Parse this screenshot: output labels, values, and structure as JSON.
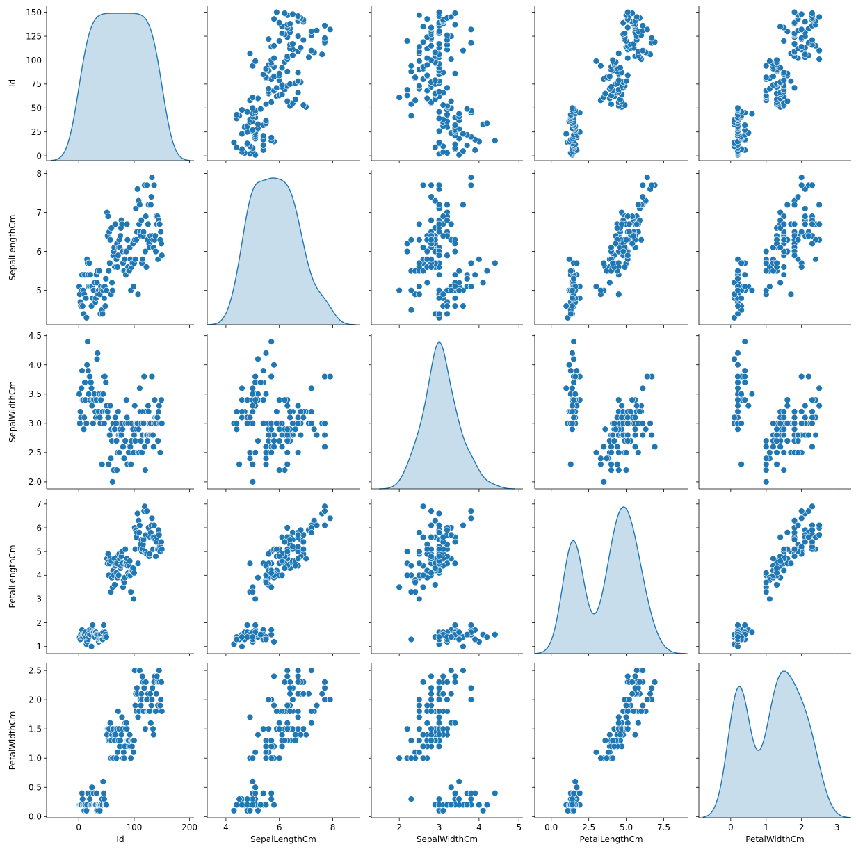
{
  "chart_data": {
    "type": "scatter",
    "kind": "pairplot",
    "diagonal": "kde",
    "point_color": "#1f77b4",
    "variables": [
      "Id",
      "SepalLengthCm",
      "SepalWidthCm",
      "PetalLengthCm",
      "PetalWidthCm"
    ],
    "axis_ranges": {
      "Id": [
        -58,
        208
      ],
      "SepalLengthCm": [
        3.3,
        9.0
      ],
      "SepalWidthCm": [
        1.3,
        5.1
      ],
      "PetalLengthCm": [
        -1.1,
        9.1
      ],
      "PetalWidthCm": [
        -0.9,
        3.4
      ]
    },
    "scatter_ranges": {
      "Id": [
        -5,
        157
      ],
      "SepalLengthCm": [
        4.12,
        8.08
      ],
      "SepalWidthCm": [
        1.88,
        4.52
      ],
      "PetalLengthCm": [
        0.7,
        7.2
      ],
      "PetalWidthCm": [
        -0.02,
        2.62
      ]
    },
    "ticks": {
      "Id": {
        "values": [
          0,
          100,
          200
        ],
        "labels": [
          "0",
          "100",
          "200"
        ]
      },
      "SepalLengthCm": {
        "values": [
          4,
          6,
          8
        ],
        "labels": [
          "4",
          "6",
          "8"
        ]
      },
      "SepalWidthCm": {
        "values": [
          2,
          3,
          4,
          5
        ],
        "labels": [
          "2",
          "3",
          "4",
          "5"
        ]
      },
      "PetalLengthCm": {
        "values": [
          0,
          2.5,
          5,
          7.5
        ],
        "labels": [
          "0.0",
          "2.5",
          "5.0",
          "7.5"
        ]
      },
      "PetalWidthCm": {
        "values": [
          0,
          1,
          2,
          3
        ],
        "labels": [
          "0",
          "1",
          "2",
          "3"
        ]
      }
    },
    "y_ticks": {
      "Id": {
        "values": [
          0,
          25,
          50,
          75,
          100,
          125,
          150
        ],
        "labels": [
          "0",
          "25",
          "50",
          "75",
          "100",
          "125",
          "150"
        ]
      },
      "SepalLengthCm": {
        "values": [
          5,
          6,
          7,
          8
        ],
        "labels": [
          "5",
          "6",
          "7",
          "8"
        ]
      },
      "SepalWidthCm": {
        "values": [
          2,
          2.5,
          3,
          3.5,
          4,
          4.5
        ],
        "labels": [
          "2.0",
          "2.5",
          "3.0",
          "3.5",
          "4.0",
          "4.5"
        ]
      },
      "PetalLengthCm": {
        "values": [
          1,
          2,
          3,
          4,
          5,
          6,
          7
        ],
        "labels": [
          "1",
          "2",
          "3",
          "4",
          "5",
          "6",
          "7"
        ]
      },
      "PetalWidthCm": {
        "values": [
          0,
          0.5,
          1,
          1.5,
          2,
          2.5
        ],
        "labels": [
          "0.0",
          "0.5",
          "1.0",
          "1.5",
          "2.0",
          "2.5"
        ]
      }
    },
    "points": [
      [
        1,
        5.1,
        3.5,
        1.4,
        0.2
      ],
      [
        2,
        4.9,
        3.0,
        1.4,
        0.2
      ],
      [
        3,
        4.7,
        3.2,
        1.3,
        0.2
      ],
      [
        4,
        4.6,
        3.1,
        1.5,
        0.2
      ],
      [
        5,
        5.0,
        3.6,
        1.4,
        0.2
      ],
      [
        6,
        5.4,
        3.9,
        1.7,
        0.4
      ],
      [
        7,
        4.6,
        3.4,
        1.4,
        0.3
      ],
      [
        8,
        5.0,
        3.4,
        1.5,
        0.2
      ],
      [
        9,
        4.4,
        2.9,
        1.4,
        0.2
      ],
      [
        10,
        4.9,
        3.1,
        1.5,
        0.1
      ],
      [
        11,
        5.4,
        3.7,
        1.5,
        0.2
      ],
      [
        12,
        4.8,
        3.4,
        1.6,
        0.2
      ],
      [
        13,
        4.8,
        3.0,
        1.4,
        0.1
      ],
      [
        14,
        4.3,
        3.0,
        1.1,
        0.1
      ],
      [
        15,
        5.8,
        4.0,
        1.2,
        0.2
      ],
      [
        16,
        5.7,
        4.4,
        1.5,
        0.4
      ],
      [
        17,
        5.4,
        3.9,
        1.3,
        0.4
      ],
      [
        18,
        5.1,
        3.5,
        1.4,
        0.3
      ],
      [
        19,
        5.7,
        3.8,
        1.7,
        0.3
      ],
      [
        20,
        5.1,
        3.8,
        1.5,
        0.3
      ],
      [
        21,
        5.4,
        3.4,
        1.7,
        0.2
      ],
      [
        22,
        5.1,
        3.7,
        1.5,
        0.4
      ],
      [
        23,
        4.6,
        3.6,
        1.0,
        0.2
      ],
      [
        24,
        5.1,
        3.3,
        1.7,
        0.5
      ],
      [
        25,
        4.8,
        3.4,
        1.9,
        0.2
      ],
      [
        26,
        5.0,
        3.0,
        1.6,
        0.2
      ],
      [
        27,
        5.0,
        3.4,
        1.6,
        0.4
      ],
      [
        28,
        5.2,
        3.5,
        1.5,
        0.2
      ],
      [
        29,
        5.2,
        3.4,
        1.4,
        0.2
      ],
      [
        30,
        4.7,
        3.2,
        1.6,
        0.2
      ],
      [
        31,
        4.8,
        3.1,
        1.6,
        0.2
      ],
      [
        32,
        5.4,
        3.4,
        1.5,
        0.4
      ],
      [
        33,
        5.2,
        4.1,
        1.5,
        0.1
      ],
      [
        34,
        5.5,
        4.2,
        1.4,
        0.2
      ],
      [
        35,
        4.9,
        3.1,
        1.5,
        0.1
      ],
      [
        36,
        5.0,
        3.2,
        1.2,
        0.2
      ],
      [
        37,
        5.5,
        3.5,
        1.3,
        0.2
      ],
      [
        38,
        4.9,
        3.1,
        1.5,
        0.1
      ],
      [
        39,
        4.4,
        3.0,
        1.3,
        0.2
      ],
      [
        40,
        5.1,
        3.4,
        1.5,
        0.2
      ],
      [
        41,
        5.0,
        3.5,
        1.3,
        0.3
      ],
      [
        42,
        4.5,
        2.3,
        1.3,
        0.3
      ],
      [
        43,
        4.4,
        3.2,
        1.3,
        0.2
      ],
      [
        44,
        5.0,
        3.5,
        1.6,
        0.6
      ],
      [
        45,
        5.1,
        3.8,
        1.9,
        0.4
      ],
      [
        46,
        4.8,
        3.0,
        1.4,
        0.3
      ],
      [
        47,
        5.1,
        3.8,
        1.6,
        0.2
      ],
      [
        48,
        4.6,
        3.2,
        1.4,
        0.2
      ],
      [
        49,
        5.3,
        3.7,
        1.5,
        0.2
      ],
      [
        50,
        5.0,
        3.3,
        1.4,
        0.2
      ],
      [
        51,
        7.0,
        3.2,
        4.7,
        1.4
      ],
      [
        52,
        6.4,
        3.2,
        4.5,
        1.5
      ],
      [
        53,
        6.9,
        3.1,
        4.9,
        1.5
      ],
      [
        54,
        5.5,
        2.3,
        4.0,
        1.3
      ],
      [
        55,
        6.5,
        2.8,
        4.6,
        1.5
      ],
      [
        56,
        5.7,
        2.8,
        4.5,
        1.3
      ],
      [
        57,
        6.3,
        3.3,
        4.7,
        1.6
      ],
      [
        58,
        4.9,
        2.4,
        3.3,
        1.0
      ],
      [
        59,
        6.6,
        2.9,
        4.6,
        1.3
      ],
      [
        60,
        5.2,
        2.7,
        3.9,
        1.4
      ],
      [
        61,
        5.0,
        2.0,
        3.5,
        1.0
      ],
      [
        62,
        5.9,
        3.0,
        4.2,
        1.5
      ],
      [
        63,
        6.0,
        2.2,
        4.0,
        1.0
      ],
      [
        64,
        6.1,
        2.9,
        4.7,
        1.4
      ],
      [
        65,
        5.6,
        2.9,
        3.6,
        1.3
      ],
      [
        66,
        6.7,
        3.1,
        4.4,
        1.4
      ],
      [
        67,
        5.6,
        3.0,
        4.5,
        1.5
      ],
      [
        68,
        5.8,
        2.7,
        4.1,
        1.0
      ],
      [
        69,
        6.2,
        2.2,
        4.5,
        1.5
      ],
      [
        70,
        5.6,
        2.5,
        3.9,
        1.1
      ],
      [
        71,
        5.9,
        3.2,
        4.8,
        1.8
      ],
      [
        72,
        6.1,
        2.8,
        4.0,
        1.3
      ],
      [
        73,
        6.3,
        2.5,
        4.9,
        1.5
      ],
      [
        74,
        6.1,
        2.8,
        4.7,
        1.2
      ],
      [
        75,
        6.4,
        2.9,
        4.3,
        1.3
      ],
      [
        76,
        6.6,
        3.0,
        4.4,
        1.4
      ],
      [
        77,
        6.8,
        2.8,
        4.8,
        1.4
      ],
      [
        78,
        6.7,
        3.0,
        5.0,
        1.7
      ],
      [
        79,
        6.0,
        2.9,
        4.5,
        1.5
      ],
      [
        80,
        5.7,
        2.6,
        3.5,
        1.0
      ],
      [
        81,
        5.5,
        2.4,
        3.8,
        1.1
      ],
      [
        82,
        5.5,
        2.4,
        3.7,
        1.0
      ],
      [
        83,
        5.8,
        2.7,
        3.9,
        1.2
      ],
      [
        84,
        6.0,
        2.7,
        5.1,
        1.6
      ],
      [
        85,
        5.4,
        3.0,
        4.5,
        1.5
      ],
      [
        86,
        6.0,
        3.4,
        4.5,
        1.6
      ],
      [
        87,
        6.7,
        3.1,
        4.7,
        1.5
      ],
      [
        88,
        6.3,
        2.3,
        4.4,
        1.3
      ],
      [
        89,
        5.6,
        3.0,
        4.1,
        1.3
      ],
      [
        90,
        5.5,
        2.5,
        4.0,
        1.3
      ],
      [
        91,
        5.5,
        2.6,
        4.4,
        1.2
      ],
      [
        92,
        6.1,
        3.0,
        4.6,
        1.4
      ],
      [
        93,
        5.8,
        2.6,
        4.0,
        1.2
      ],
      [
        94,
        5.0,
        2.3,
        3.3,
        1.0
      ],
      [
        95,
        5.6,
        2.7,
        4.2,
        1.3
      ],
      [
        96,
        5.7,
        3.0,
        4.2,
        1.2
      ],
      [
        97,
        5.7,
        2.9,
        4.2,
        1.3
      ],
      [
        98,
        6.2,
        2.9,
        4.3,
        1.3
      ],
      [
        99,
        5.1,
        2.5,
        3.0,
        1.1
      ],
      [
        100,
        5.7,
        2.8,
        4.1,
        1.3
      ],
      [
        101,
        6.3,
        3.3,
        6.0,
        2.5
      ],
      [
        102,
        5.8,
        2.7,
        5.1,
        1.9
      ],
      [
        103,
        7.1,
        3.0,
        5.9,
        2.1
      ],
      [
        104,
        6.3,
        2.9,
        5.6,
        1.8
      ],
      [
        105,
        6.5,
        3.0,
        5.8,
        2.2
      ],
      [
        106,
        7.6,
        3.0,
        6.6,
        2.1
      ],
      [
        107,
        4.9,
        2.5,
        4.5,
        1.7
      ],
      [
        108,
        7.3,
        2.9,
        6.3,
        1.8
      ],
      [
        109,
        6.7,
        2.5,
        5.8,
        1.8
      ],
      [
        110,
        7.2,
        3.6,
        6.1,
        2.5
      ],
      [
        111,
        6.5,
        3.2,
        5.1,
        2.0
      ],
      [
        112,
        6.4,
        2.7,
        5.3,
        1.9
      ],
      [
        113,
        6.8,
        3.0,
        5.5,
        2.1
      ],
      [
        114,
        5.7,
        2.5,
        5.0,
        2.0
      ],
      [
        115,
        5.8,
        2.8,
        5.1,
        2.4
      ],
      [
        116,
        6.4,
        3.2,
        5.3,
        2.3
      ],
      [
        117,
        6.5,
        3.0,
        5.5,
        1.8
      ],
      [
        118,
        7.7,
        3.8,
        6.7,
        2.2
      ],
      [
        119,
        7.7,
        2.6,
        6.9,
        2.3
      ],
      [
        120,
        6.0,
        2.2,
        5.0,
        1.5
      ],
      [
        121,
        6.9,
        3.2,
        5.7,
        2.3
      ],
      [
        122,
        5.6,
        2.8,
        4.9,
        2.0
      ],
      [
        123,
        7.7,
        2.8,
        6.7,
        2.0
      ],
      [
        124,
        6.3,
        2.7,
        4.9,
        1.8
      ],
      [
        125,
        6.7,
        3.3,
        5.7,
        2.1
      ],
      [
        126,
        7.2,
        3.2,
        6.0,
        1.8
      ],
      [
        127,
        6.2,
        2.8,
        4.8,
        1.8
      ],
      [
        128,
        6.1,
        3.0,
        4.9,
        1.8
      ],
      [
        129,
        6.4,
        2.8,
        5.6,
        2.1
      ],
      [
        130,
        7.2,
        3.0,
        5.8,
        1.6
      ],
      [
        131,
        7.4,
        2.8,
        6.1,
        1.9
      ],
      [
        132,
        7.9,
        3.8,
        6.4,
        2.0
      ],
      [
        133,
        6.4,
        2.8,
        5.6,
        2.2
      ],
      [
        134,
        6.3,
        2.8,
        5.1,
        1.5
      ],
      [
        135,
        6.1,
        2.6,
        5.6,
        1.4
      ],
      [
        136,
        7.7,
        3.0,
        6.1,
        2.3
      ],
      [
        137,
        6.3,
        3.4,
        5.6,
        2.4
      ],
      [
        138,
        6.4,
        3.1,
        5.5,
        1.8
      ],
      [
        139,
        6.0,
        3.0,
        4.8,
        1.8
      ],
      [
        140,
        6.9,
        3.1,
        5.4,
        2.1
      ],
      [
        141,
        6.7,
        3.1,
        5.6,
        2.4
      ],
      [
        142,
        6.9,
        3.1,
        5.1,
        2.3
      ],
      [
        143,
        5.8,
        2.7,
        5.1,
        1.9
      ],
      [
        144,
        6.8,
        3.2,
        5.9,
        2.3
      ],
      [
        145,
        6.7,
        3.3,
        5.7,
        2.5
      ],
      [
        146,
        6.7,
        3.0,
        5.2,
        2.3
      ],
      [
        147,
        6.3,
        2.5,
        5.0,
        1.9
      ],
      [
        148,
        6.5,
        3.0,
        5.2,
        2.0
      ],
      [
        149,
        6.2,
        3.4,
        5.4,
        2.3
      ],
      [
        150,
        5.9,
        3.0,
        5.1,
        1.8
      ]
    ]
  }
}
